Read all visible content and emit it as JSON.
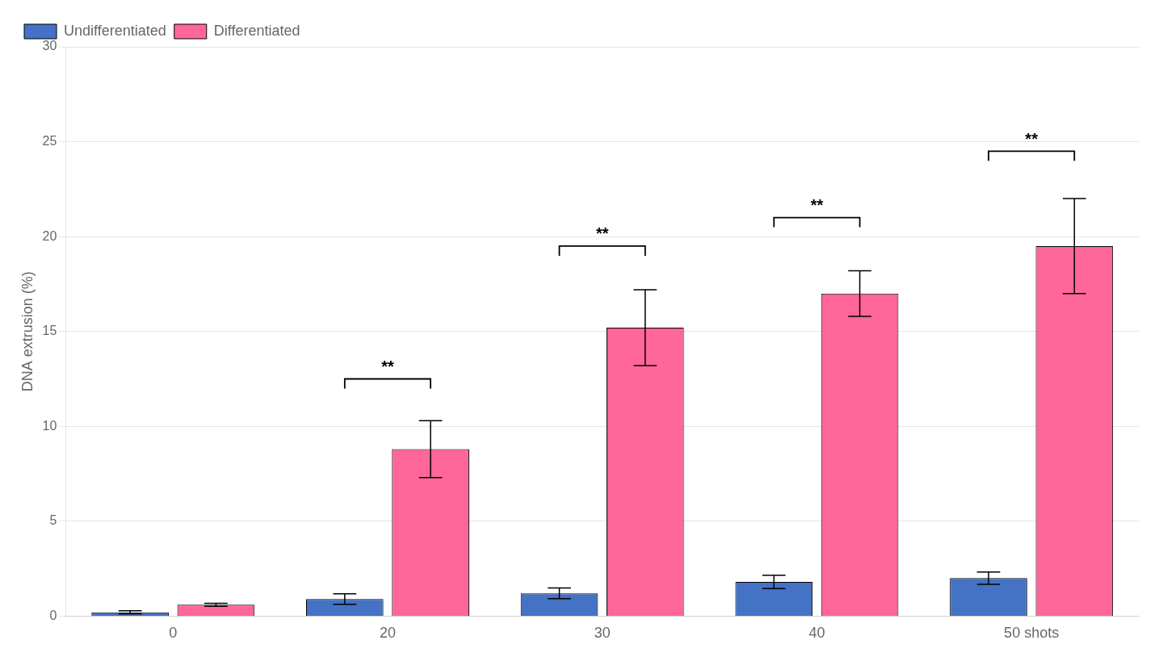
{
  "chart_data": {
    "type": "bar",
    "categories": [
      "0",
      "20",
      "30",
      "40",
      "50 shots"
    ],
    "series": [
      {
        "name": "Undifferentiated",
        "color": "#4472C4",
        "values": [
          0.2,
          0.9,
          1.2,
          1.8,
          2.0
        ],
        "errors": [
          0.08,
          0.28,
          0.28,
          0.35,
          0.32
        ]
      },
      {
        "name": "Differentiated",
        "color": "#FF6699",
        "values": [
          0.6,
          8.8,
          15.2,
          17.0,
          19.5
        ],
        "errors": [
          0.08,
          1.5,
          2.0,
          1.2,
          2.5
        ]
      }
    ],
    "ylabel": "DNA extrusion (%)",
    "ylim": [
      0,
      30
    ],
    "yticks": [
      0,
      5,
      10,
      15,
      20,
      25,
      30
    ],
    "grid": true,
    "legend": "upper left",
    "annotations": [
      {
        "category": "20",
        "y": 12.5,
        "text": "**"
      },
      {
        "category": "30",
        "y": 19.5,
        "text": "**"
      },
      {
        "category": "40",
        "y": 21.0,
        "text": "**"
      },
      {
        "category": "50 shots",
        "y": 24.5,
        "text": "**"
      }
    ]
  }
}
